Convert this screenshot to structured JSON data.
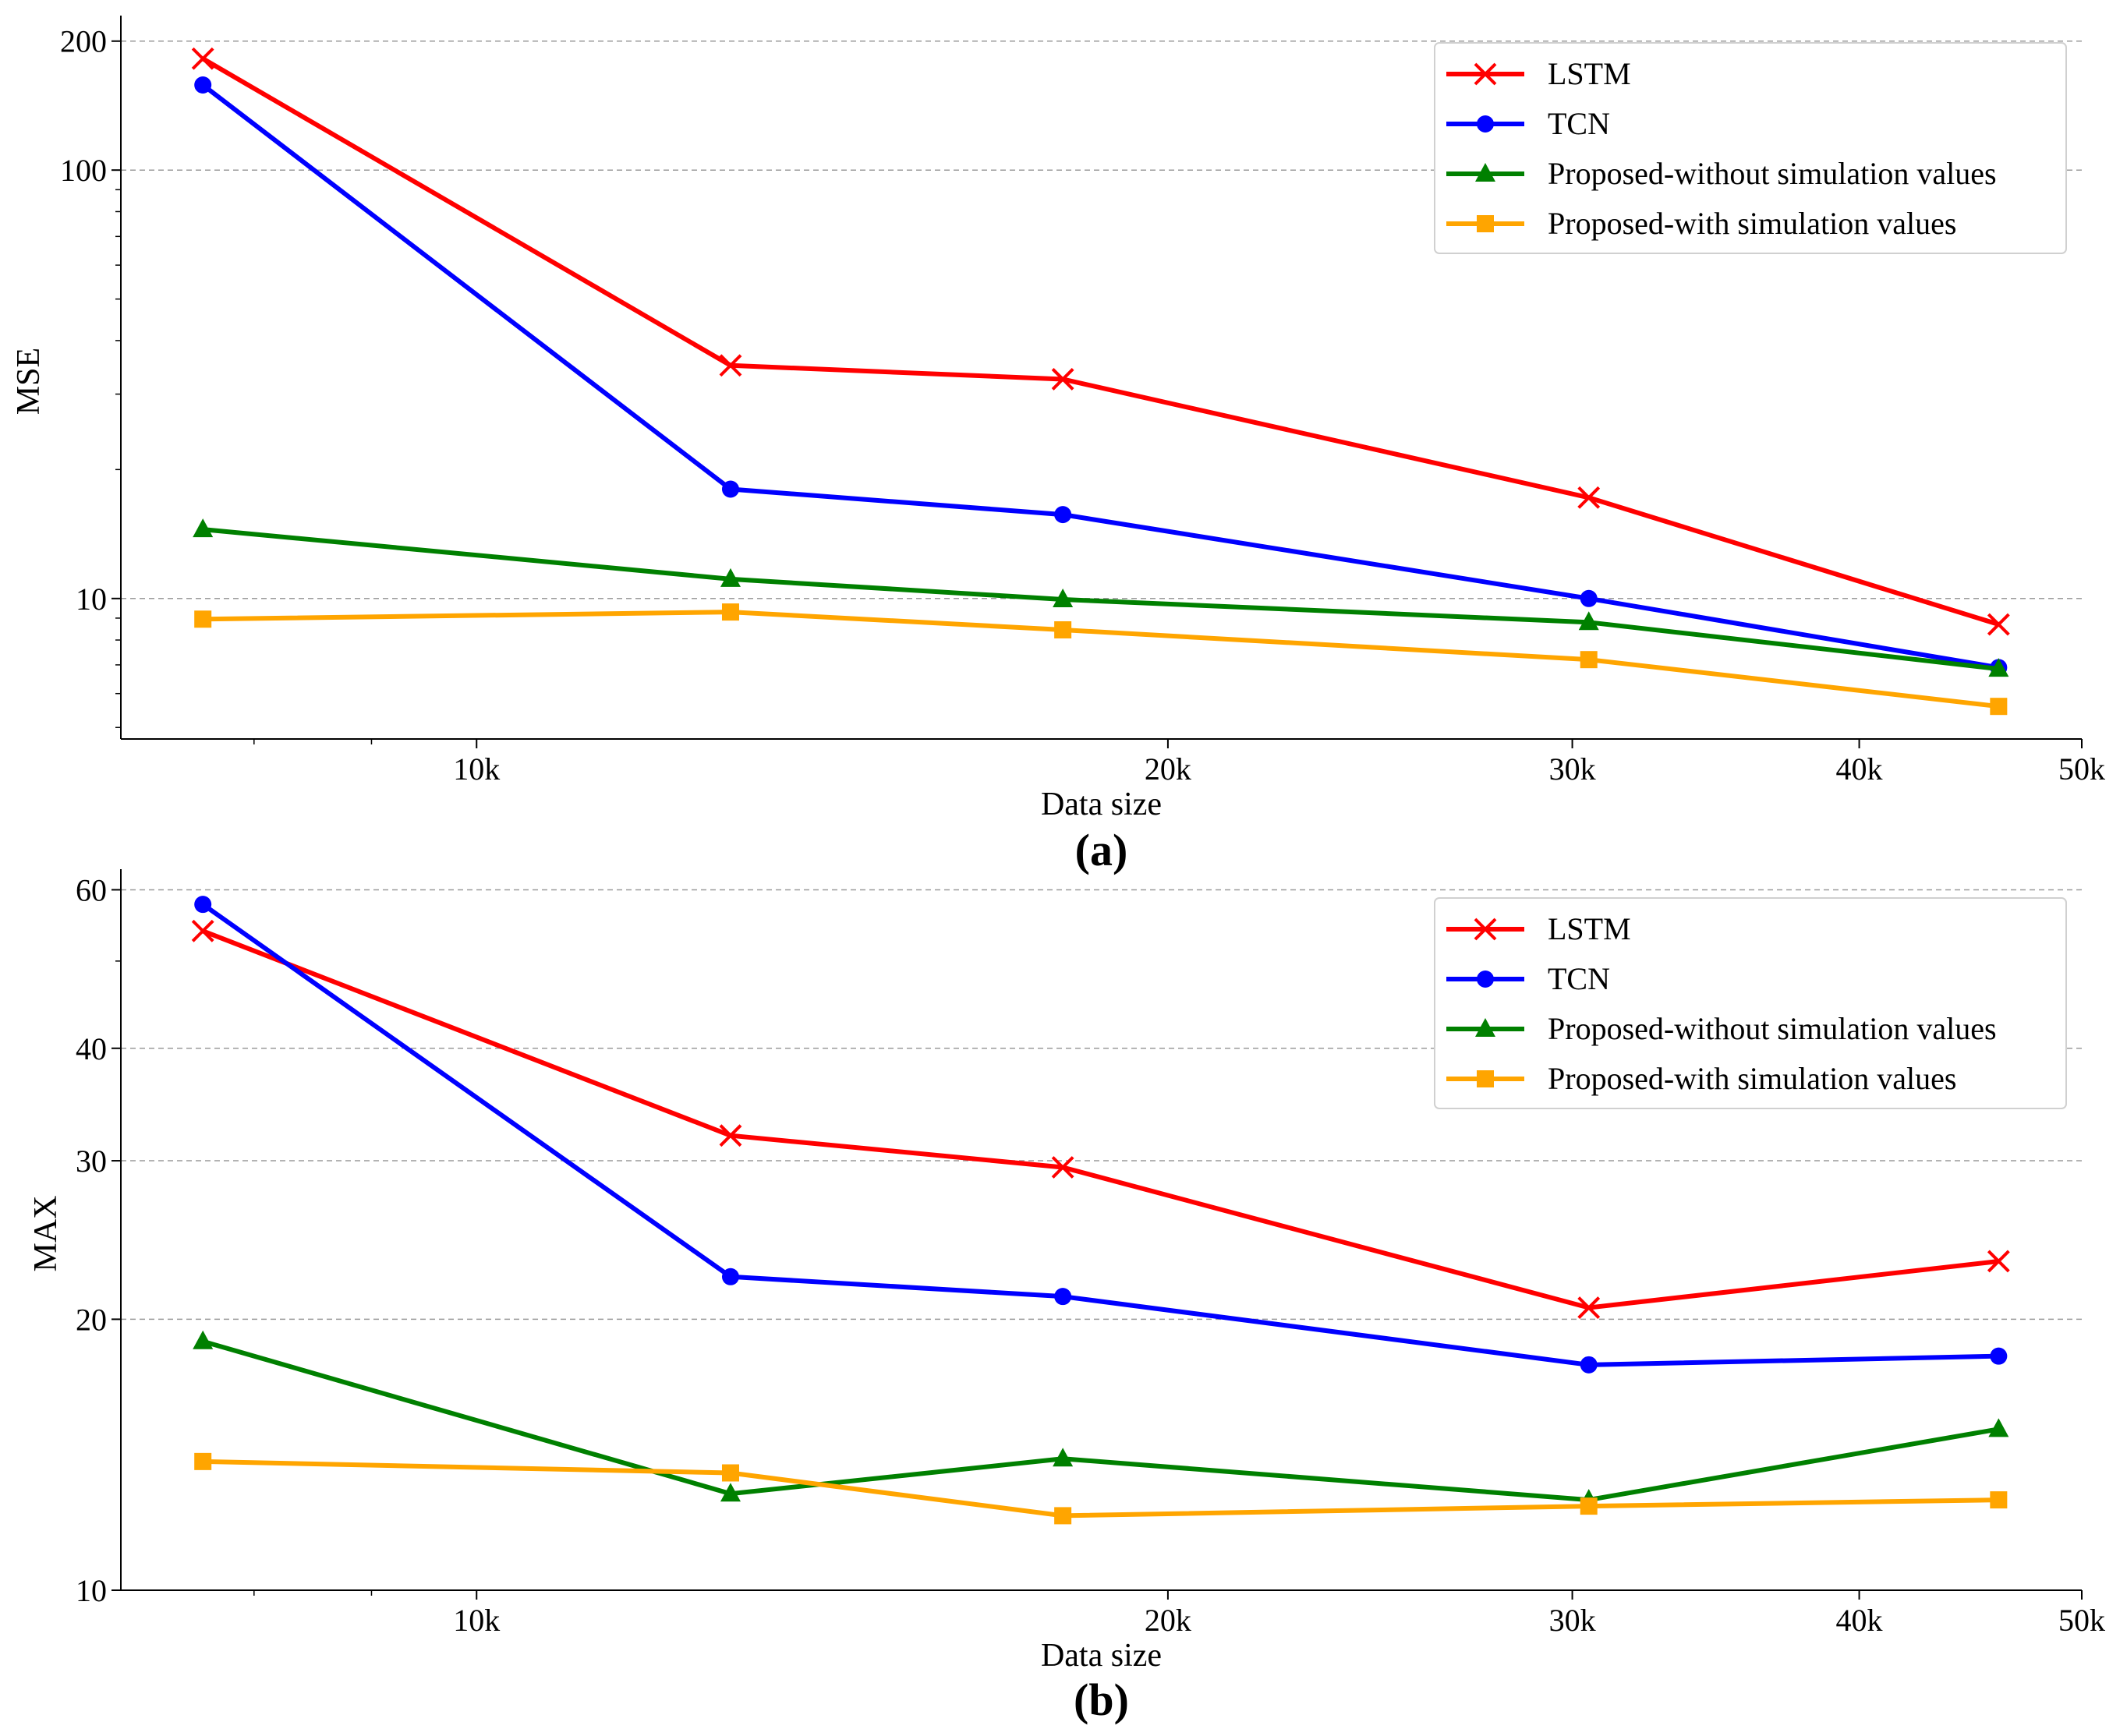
{
  "chart_data": [
    {
      "type": "line",
      "panel_label": "(a)",
      "xlabel": "Data size",
      "ylabel": "MSE",
      "xscale": "log",
      "yscale": "log",
      "xlim": [
        7000,
        50000
      ],
      "ylim": [
        4.7,
        220
      ],
      "xticks": [
        {
          "value": 10000,
          "label": "10k"
        },
        {
          "value": 20000,
          "label": "20k"
        },
        {
          "value": 30000,
          "label": "30k"
        },
        {
          "value": 40000,
          "label": "40k"
        },
        {
          "value": 50000,
          "label": "50k"
        }
      ],
      "yticks": [
        {
          "value": 10,
          "label": "10"
        },
        {
          "value": 100,
          "label": "100"
        },
        {
          "value": 200,
          "label": "200"
        }
      ],
      "grid": "y-major",
      "legend_position": "top-right",
      "x": [
        7600,
        12900,
        18000,
        30500,
        46000
      ],
      "series": [
        {
          "name": "LSTM",
          "color": "#ff0000",
          "marker": "x",
          "values": [
            182,
            35,
            32.5,
            17.2,
            8.7
          ]
        },
        {
          "name": "TCN",
          "color": "#0000ff",
          "marker": "circle",
          "values": [
            158,
            18,
            15.7,
            10,
            6.9
          ]
        },
        {
          "name": "Proposed-without simulation values",
          "color": "#008000",
          "marker": "triangle",
          "values": [
            14.5,
            11.1,
            9.95,
            8.8,
            6.85
          ]
        },
        {
          "name": "Proposed-with simulation values",
          "color": "#ffa500",
          "marker": "square",
          "values": [
            8.95,
            9.3,
            8.45,
            7.2,
            5.6
          ]
        }
      ]
    },
    {
      "type": "line",
      "panel_label": "(b)",
      "xlabel": "Data size",
      "ylabel": "MAX",
      "xscale": "log",
      "yscale": "log",
      "xlim": [
        7000,
        50000
      ],
      "ylim": [
        10,
        62
      ],
      "xticks": [
        {
          "value": 10000,
          "label": "10k"
        },
        {
          "value": 20000,
          "label": "20k"
        },
        {
          "value": 30000,
          "label": "30k"
        },
        {
          "value": 40000,
          "label": "40k"
        },
        {
          "value": 50000,
          "label": "50k"
        }
      ],
      "yticks": [
        {
          "value": 10,
          "label": "10"
        },
        {
          "value": 20,
          "label": "20"
        },
        {
          "value": 30,
          "label": "30"
        },
        {
          "value": 40,
          "label": "40"
        },
        {
          "value": 60,
          "label": "60"
        }
      ],
      "grid": "y-major",
      "legend_position": "top-right",
      "x": [
        7600,
        12900,
        18000,
        30500,
        46000
      ],
      "series": [
        {
          "name": "LSTM",
          "color": "#ff0000",
          "marker": "x",
          "values": [
            54,
            32,
            29.5,
            20.6,
            23.2
          ]
        },
        {
          "name": "TCN",
          "color": "#0000ff",
          "marker": "circle",
          "values": [
            57.8,
            22.3,
            21.2,
            17.8,
            18.2
          ]
        },
        {
          "name": "Proposed-without simulation values",
          "color": "#008000",
          "marker": "triangle",
          "values": [
            18.9,
            12.8,
            14.0,
            12.6,
            15.1
          ]
        },
        {
          "name": "Proposed-with simulation values",
          "color": "#ffa500",
          "marker": "square",
          "values": [
            13.9,
            13.5,
            12.1,
            12.4,
            12.6
          ]
        }
      ]
    }
  ]
}
